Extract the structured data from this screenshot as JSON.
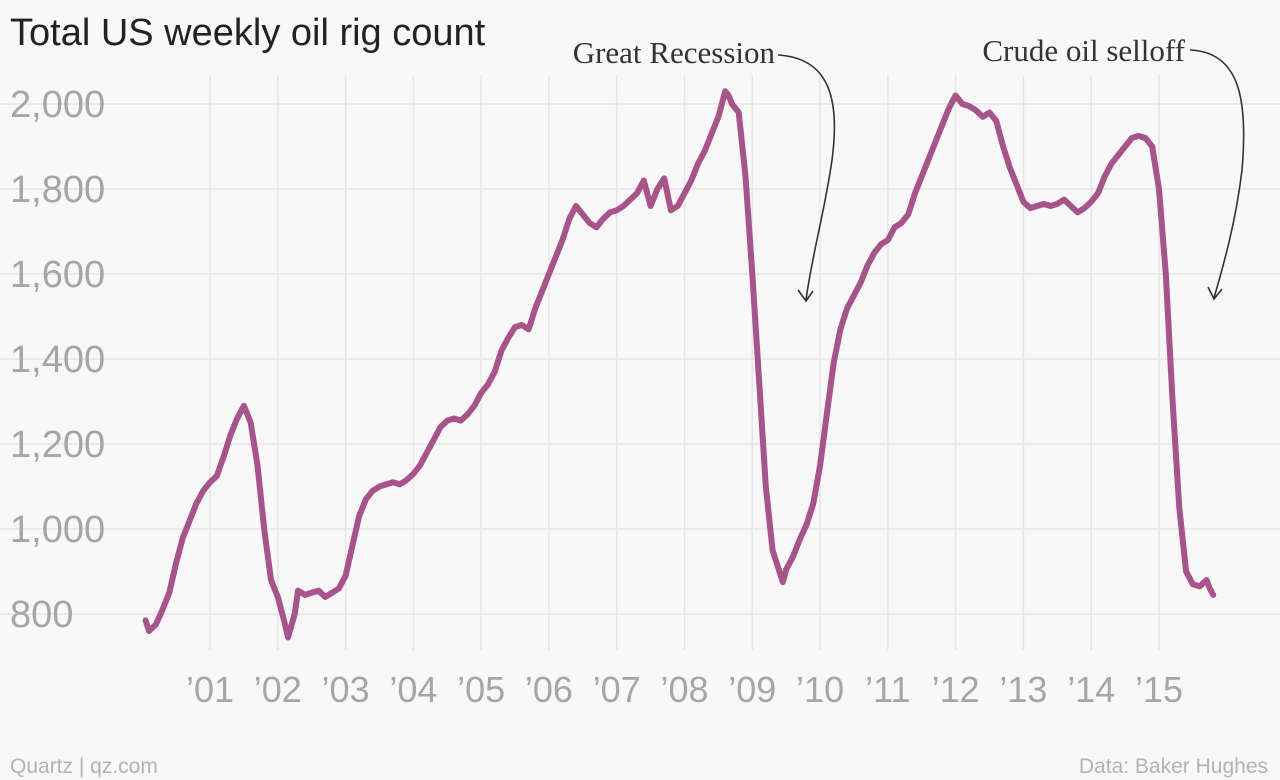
{
  "chart_data": {
    "type": "line",
    "title": "Total US weekly oil rig count",
    "xlabel": "",
    "ylabel": "",
    "x_ticks": [
      {
        "label": "’01",
        "x": 2001
      },
      {
        "label": "’02",
        "x": 2002
      },
      {
        "label": "’03",
        "x": 2003
      },
      {
        "label": "’04",
        "x": 2004
      },
      {
        "label": "’05",
        "x": 2005
      },
      {
        "label": "’06",
        "x": 2006
      },
      {
        "label": "’07",
        "x": 2007
      },
      {
        "label": "’08",
        "x": 2008
      },
      {
        "label": "’09",
        "x": 2009
      },
      {
        "label": "’10",
        "x": 2010
      },
      {
        "label": "’11",
        "x": 2011
      },
      {
        "label": "’12",
        "x": 2012
      },
      {
        "label": "’13",
        "x": 2013
      },
      {
        "label": "’14",
        "x": 2014
      },
      {
        "label": "’15",
        "x": 2015
      }
    ],
    "y_ticks": [
      {
        "label": "800",
        "value": 800
      },
      {
        "label": "1,000",
        "value": 1000
      },
      {
        "label": "1,200",
        "value": 1200
      },
      {
        "label": "1,400",
        "value": 1400
      },
      {
        "label": "1,600",
        "value": 1600
      },
      {
        "label": "1,800",
        "value": 1800
      },
      {
        "label": "2,000",
        "value": 2000
      }
    ],
    "xlim": [
      2000.0,
      2016.0
    ],
    "ylim": [
      720,
      2060
    ],
    "grid": true,
    "series": [
      {
        "color": "#a8538a",
        "points": [
          [
            2000.05,
            785
          ],
          [
            2000.1,
            760
          ],
          [
            2000.2,
            775
          ],
          [
            2000.3,
            810
          ],
          [
            2000.4,
            850
          ],
          [
            2000.5,
            920
          ],
          [
            2000.6,
            980
          ],
          [
            2000.7,
            1020
          ],
          [
            2000.8,
            1060
          ],
          [
            2000.9,
            1090
          ],
          [
            2001.0,
            1110
          ],
          [
            2001.1,
            1125
          ],
          [
            2001.2,
            1170
          ],
          [
            2001.3,
            1220
          ],
          [
            2001.4,
            1260
          ],
          [
            2001.5,
            1290
          ],
          [
            2001.55,
            1270
          ],
          [
            2001.6,
            1250
          ],
          [
            2001.7,
            1150
          ],
          [
            2001.8,
            1000
          ],
          [
            2001.9,
            880
          ],
          [
            2002.0,
            840
          ],
          [
            2002.1,
            780
          ],
          [
            2002.15,
            745
          ],
          [
            2002.25,
            800
          ],
          [
            2002.3,
            855
          ],
          [
            2002.4,
            845
          ],
          [
            2002.5,
            850
          ],
          [
            2002.6,
            855
          ],
          [
            2002.7,
            840
          ],
          [
            2002.8,
            850
          ],
          [
            2002.9,
            860
          ],
          [
            2003.0,
            890
          ],
          [
            2003.1,
            960
          ],
          [
            2003.2,
            1030
          ],
          [
            2003.3,
            1070
          ],
          [
            2003.4,
            1090
          ],
          [
            2003.5,
            1100
          ],
          [
            2003.6,
            1105
          ],
          [
            2003.7,
            1110
          ],
          [
            2003.8,
            1105
          ],
          [
            2003.9,
            1115
          ],
          [
            2004.0,
            1130
          ],
          [
            2004.1,
            1150
          ],
          [
            2004.2,
            1180
          ],
          [
            2004.3,
            1210
          ],
          [
            2004.4,
            1240
          ],
          [
            2004.5,
            1255
          ],
          [
            2004.6,
            1260
          ],
          [
            2004.7,
            1255
          ],
          [
            2004.8,
            1270
          ],
          [
            2004.9,
            1290
          ],
          [
            2005.0,
            1320
          ],
          [
            2005.1,
            1340
          ],
          [
            2005.2,
            1370
          ],
          [
            2005.3,
            1420
          ],
          [
            2005.4,
            1450
          ],
          [
            2005.5,
            1475
          ],
          [
            2005.6,
            1480
          ],
          [
            2005.7,
            1470
          ],
          [
            2005.8,
            1520
          ],
          [
            2005.9,
            1560
          ],
          [
            2006.0,
            1600
          ],
          [
            2006.1,
            1640
          ],
          [
            2006.2,
            1680
          ],
          [
            2006.3,
            1730
          ],
          [
            2006.4,
            1760
          ],
          [
            2006.5,
            1740
          ],
          [
            2006.6,
            1720
          ],
          [
            2006.7,
            1710
          ],
          [
            2006.8,
            1730
          ],
          [
            2006.9,
            1745
          ],
          [
            2007.0,
            1750
          ],
          [
            2007.1,
            1760
          ],
          [
            2007.2,
            1775
          ],
          [
            2007.3,
            1790
          ],
          [
            2007.4,
            1820
          ],
          [
            2007.5,
            1760
          ],
          [
            2007.6,
            1800
          ],
          [
            2007.7,
            1825
          ],
          [
            2007.8,
            1750
          ],
          [
            2007.9,
            1760
          ],
          [
            2008.0,
            1790
          ],
          [
            2008.1,
            1820
          ],
          [
            2008.2,
            1860
          ],
          [
            2008.3,
            1890
          ],
          [
            2008.4,
            1930
          ],
          [
            2008.5,
            1970
          ],
          [
            2008.6,
            2030
          ],
          [
            2008.65,
            2020
          ],
          [
            2008.7,
            2000
          ],
          [
            2008.8,
            1980
          ],
          [
            2008.9,
            1830
          ],
          [
            2009.0,
            1600
          ],
          [
            2009.1,
            1350
          ],
          [
            2009.2,
            1100
          ],
          [
            2009.3,
            950
          ],
          [
            2009.4,
            900
          ],
          [
            2009.45,
            875
          ],
          [
            2009.5,
            905
          ],
          [
            2009.6,
            935
          ],
          [
            2009.7,
            975
          ],
          [
            2009.8,
            1010
          ],
          [
            2009.9,
            1060
          ],
          [
            2010.0,
            1150
          ],
          [
            2010.1,
            1270
          ],
          [
            2010.2,
            1390
          ],
          [
            2010.3,
            1470
          ],
          [
            2010.4,
            1520
          ],
          [
            2010.5,
            1550
          ],
          [
            2010.6,
            1580
          ],
          [
            2010.7,
            1620
          ],
          [
            2010.8,
            1650
          ],
          [
            2010.9,
            1670
          ],
          [
            2011.0,
            1680
          ],
          [
            2011.1,
            1710
          ],
          [
            2011.2,
            1720
          ],
          [
            2011.3,
            1740
          ],
          [
            2011.4,
            1790
          ],
          [
            2011.5,
            1830
          ],
          [
            2011.6,
            1870
          ],
          [
            2011.7,
            1910
          ],
          [
            2011.8,
            1950
          ],
          [
            2011.9,
            1990
          ],
          [
            2012.0,
            2020
          ],
          [
            2012.1,
            2000
          ],
          [
            2012.2,
            1995
          ],
          [
            2012.3,
            1985
          ],
          [
            2012.4,
            1970
          ],
          [
            2012.5,
            1980
          ],
          [
            2012.6,
            1960
          ],
          [
            2012.7,
            1900
          ],
          [
            2012.8,
            1850
          ],
          [
            2012.9,
            1810
          ],
          [
            2013.0,
            1770
          ],
          [
            2013.1,
            1755
          ],
          [
            2013.2,
            1760
          ],
          [
            2013.3,
            1765
          ],
          [
            2013.4,
            1760
          ],
          [
            2013.5,
            1765
          ],
          [
            2013.6,
            1775
          ],
          [
            2013.7,
            1760
          ],
          [
            2013.8,
            1745
          ],
          [
            2013.9,
            1755
          ],
          [
            2014.0,
            1770
          ],
          [
            2014.1,
            1790
          ],
          [
            2014.2,
            1830
          ],
          [
            2014.3,
            1860
          ],
          [
            2014.4,
            1880
          ],
          [
            2014.5,
            1900
          ],
          [
            2014.6,
            1920
          ],
          [
            2014.7,
            1925
          ],
          [
            2014.8,
            1920
          ],
          [
            2014.9,
            1900
          ],
          [
            2015.0,
            1800
          ],
          [
            2015.1,
            1600
          ],
          [
            2015.15,
            1450
          ],
          [
            2015.2,
            1300
          ],
          [
            2015.3,
            1050
          ],
          [
            2015.4,
            900
          ],
          [
            2015.5,
            870
          ],
          [
            2015.6,
            865
          ],
          [
            2015.7,
            880
          ],
          [
            2015.75,
            860
          ],
          [
            2015.8,
            845
          ]
        ]
      }
    ],
    "annotations": [
      {
        "text": "Great Recession",
        "x": 2009.6,
        "y": 1540
      },
      {
        "text": "Crude oil selloff",
        "x": 2015.9,
        "y": 1535
      }
    ]
  },
  "footer": {
    "left": "Quartz | qz.com",
    "right": "Data: Baker Hughes"
  }
}
